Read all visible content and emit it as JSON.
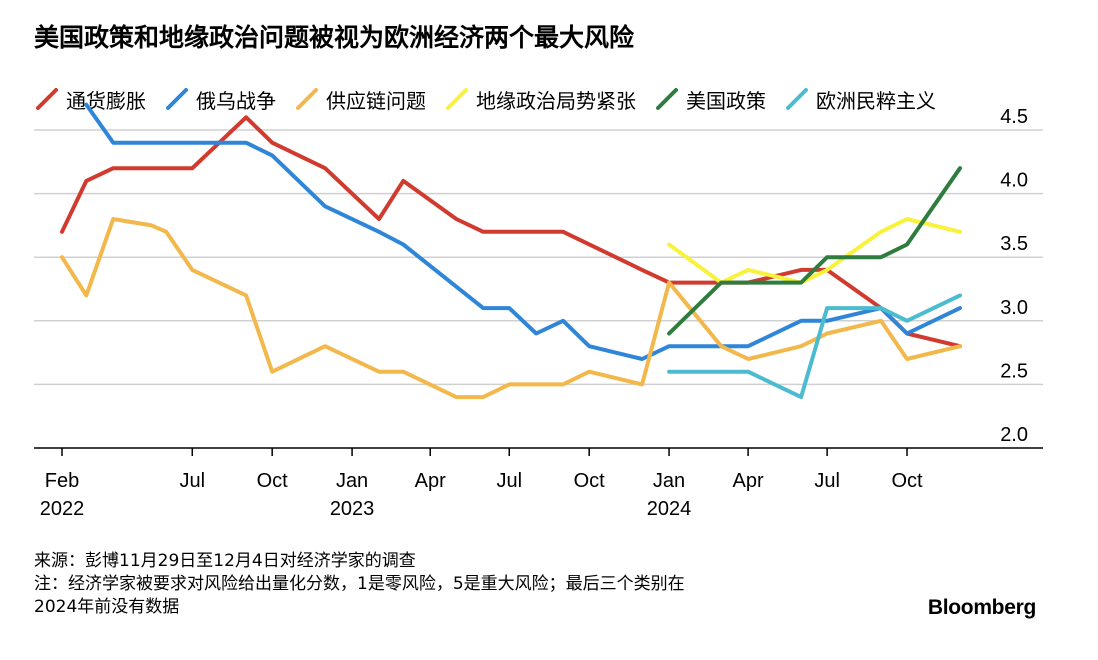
{
  "title": "美国政策和地缘政治问题被视为欧洲经济两个最大风险",
  "footnote": {
    "source": "来源：彭博11月29日至12月4日对经济学家的调查",
    "note_line1": "注：经济学家被要求对风险给出量化分数，1是零风险，5是重大风险；最后三个类别在",
    "note_line2": "2024年前没有数据"
  },
  "brand": "Bloomberg",
  "chart_data": {
    "type": "line",
    "title": "美国政策和地缘政治问题被视为欧洲经济两个最大风险",
    "xlabel": "",
    "ylabel": "",
    "ylim": [
      2.0,
      4.5
    ],
    "yticks": [
      "2.0",
      "2.5",
      "3.0",
      "3.5",
      "4.0",
      "4.5"
    ],
    "xlim": [
      "2022-01-01",
      "2024-12-31"
    ],
    "xticks": [
      {
        "date": "2022-02-01",
        "label": "Feb",
        "year": "2022"
      },
      {
        "date": "2022-07-01",
        "label": "Jul",
        "year": ""
      },
      {
        "date": "2022-10-01",
        "label": "Oct",
        "year": ""
      },
      {
        "date": "2023-01-01",
        "label": "Jan",
        "year": "2023"
      },
      {
        "date": "2023-04-01",
        "label": "Apr",
        "year": ""
      },
      {
        "date": "2023-07-01",
        "label": "Jul",
        "year": ""
      },
      {
        "date": "2023-10-01",
        "label": "Oct",
        "year": ""
      },
      {
        "date": "2024-01-01",
        "label": "Jan",
        "year": "2024"
      },
      {
        "date": "2024-04-01",
        "label": "Apr",
        "year": ""
      },
      {
        "date": "2024-07-01",
        "label": "Jul",
        "year": ""
      },
      {
        "date": "2024-10-01",
        "label": "Oct",
        "year": ""
      }
    ],
    "grid": true,
    "legend_position": "top",
    "series": [
      {
        "name": "通货膨胀",
        "color": "#d13a2e",
        "points": [
          [
            "2022-02-01",
            3.7
          ],
          [
            "2022-03-01",
            4.1
          ],
          [
            "2022-04-01",
            4.2
          ],
          [
            "2022-05-15",
            4.2
          ],
          [
            "2022-07-01",
            4.2
          ],
          [
            "2022-09-01",
            4.6
          ],
          [
            "2022-10-01",
            4.4
          ],
          [
            "2022-12-01",
            4.2
          ],
          [
            "2023-02-01",
            3.8
          ],
          [
            "2023-03-01",
            4.1
          ],
          [
            "2023-05-01",
            3.8
          ],
          [
            "2023-06-01",
            3.7
          ],
          [
            "2023-07-01",
            3.7
          ],
          [
            "2023-09-01",
            3.7
          ],
          [
            "2023-12-01",
            3.4
          ],
          [
            "2024-01-01",
            3.3
          ],
          [
            "2024-03-01",
            3.3
          ],
          [
            "2024-04-01",
            3.3
          ],
          [
            "2024-06-01",
            3.4
          ],
          [
            "2024-07-01",
            3.4
          ],
          [
            "2024-09-01",
            3.1
          ],
          [
            "2024-10-01",
            2.9
          ],
          [
            "2024-12-01",
            2.8
          ]
        ]
      },
      {
        "name": "俄乌战争",
        "color": "#2f86d8",
        "points": [
          [
            "2022-03-01",
            4.7
          ],
          [
            "2022-04-01",
            4.4
          ],
          [
            "2022-07-01",
            4.4
          ],
          [
            "2022-09-01",
            4.4
          ],
          [
            "2022-10-01",
            4.3
          ],
          [
            "2022-12-01",
            3.9
          ],
          [
            "2023-02-01",
            3.7
          ],
          [
            "2023-03-01",
            3.6
          ],
          [
            "2023-06-01",
            3.1
          ],
          [
            "2023-07-01",
            3.1
          ],
          [
            "2023-08-01",
            2.9
          ],
          [
            "2023-09-01",
            3.0
          ],
          [
            "2023-10-01",
            2.8
          ],
          [
            "2023-12-01",
            2.7
          ],
          [
            "2024-01-01",
            2.8
          ],
          [
            "2024-03-01",
            2.8
          ],
          [
            "2024-04-01",
            2.8
          ],
          [
            "2024-06-01",
            3.0
          ],
          [
            "2024-07-01",
            3.0
          ],
          [
            "2024-09-01",
            3.1
          ],
          [
            "2024-10-01",
            2.9
          ],
          [
            "2024-12-01",
            3.1
          ]
        ]
      },
      {
        "name": "供应链问题",
        "color": "#f2b84b",
        "points": [
          [
            "2022-02-01",
            3.5
          ],
          [
            "2022-03-01",
            3.2
          ],
          [
            "2022-04-01",
            3.8
          ],
          [
            "2022-05-15",
            3.75
          ],
          [
            "2022-06-01",
            3.7
          ],
          [
            "2022-07-01",
            3.4
          ],
          [
            "2022-09-01",
            3.2
          ],
          [
            "2022-10-01",
            2.6
          ],
          [
            "2022-12-01",
            2.8
          ],
          [
            "2023-02-01",
            2.6
          ],
          [
            "2023-03-01",
            2.6
          ],
          [
            "2023-05-01",
            2.4
          ],
          [
            "2023-06-01",
            2.4
          ],
          [
            "2023-07-01",
            2.5
          ],
          [
            "2023-09-01",
            2.5
          ],
          [
            "2023-10-01",
            2.6
          ],
          [
            "2023-12-01",
            2.5
          ],
          [
            "2024-01-01",
            3.3
          ],
          [
            "2024-03-01",
            2.8
          ],
          [
            "2024-04-01",
            2.7
          ],
          [
            "2024-06-01",
            2.8
          ],
          [
            "2024-07-01",
            2.9
          ],
          [
            "2024-09-01",
            3.0
          ],
          [
            "2024-10-01",
            2.7
          ],
          [
            "2024-12-01",
            2.8
          ]
        ]
      },
      {
        "name": "地缘政治局势紧张",
        "color": "#f9f23a",
        "points": [
          [
            "2024-01-01",
            3.6
          ],
          [
            "2024-03-01",
            3.3
          ],
          [
            "2024-04-01",
            3.4
          ],
          [
            "2024-06-01",
            3.3
          ],
          [
            "2024-07-01",
            3.4
          ],
          [
            "2024-09-01",
            3.7
          ],
          [
            "2024-10-01",
            3.8
          ],
          [
            "2024-12-01",
            3.7
          ]
        ]
      },
      {
        "name": "美国政策",
        "color": "#2e7d3e",
        "points": [
          [
            "2024-01-01",
            2.9
          ],
          [
            "2024-03-01",
            3.3
          ],
          [
            "2024-04-01",
            3.3
          ],
          [
            "2024-06-01",
            3.3
          ],
          [
            "2024-07-01",
            3.5
          ],
          [
            "2024-09-01",
            3.5
          ],
          [
            "2024-10-01",
            3.6
          ],
          [
            "2024-12-01",
            4.2
          ]
        ]
      },
      {
        "name": "欧洲民粹主义",
        "color": "#4bbcd0",
        "points": [
          [
            "2024-01-01",
            2.6
          ],
          [
            "2024-03-01",
            2.6
          ],
          [
            "2024-04-01",
            2.6
          ],
          [
            "2024-06-01",
            2.4
          ],
          [
            "2024-07-01",
            3.1
          ],
          [
            "2024-09-01",
            3.1
          ],
          [
            "2024-10-01",
            3.0
          ],
          [
            "2024-12-01",
            3.2
          ]
        ]
      }
    ]
  }
}
